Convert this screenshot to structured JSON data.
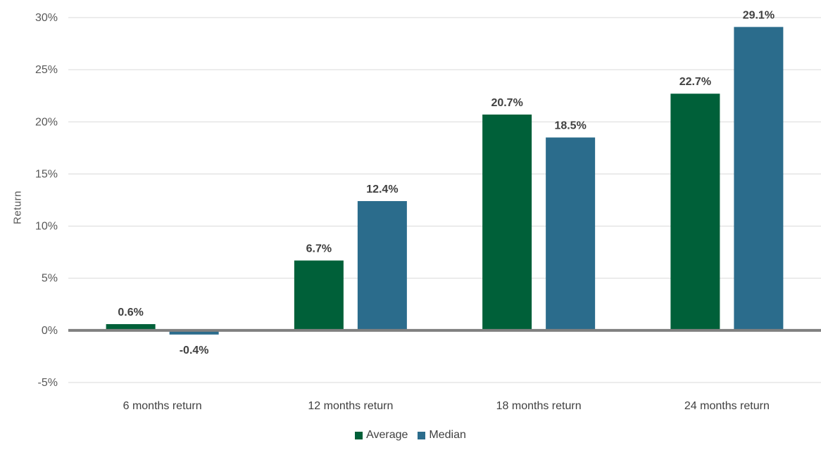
{
  "chart_data": {
    "type": "bar",
    "categories": [
      "6 months return",
      "12 months return",
      "18 months return",
      "24 months return"
    ],
    "series": [
      {
        "name": "Average",
        "values": [
          0.6,
          6.7,
          20.7,
          22.7
        ],
        "labels": [
          "0.6%",
          "6.7%",
          "20.7%",
          "22.7%"
        ],
        "color": "#006039"
      },
      {
        "name": "Median",
        "values": [
          -0.4,
          12.4,
          18.5,
          29.1
        ],
        "labels": [
          "-0.4%",
          "12.4%",
          "18.5%",
          "29.1%"
        ],
        "color": "#2b6c8c"
      }
    ],
    "ylabel": "Return",
    "xlabel": "",
    "ylim": [
      -5,
      30
    ],
    "yticks": [
      30,
      25,
      20,
      15,
      10,
      5,
      0,
      -5
    ],
    "ytick_labels": [
      "30%",
      "25%",
      "20%",
      "15%",
      "10%",
      "5%",
      "0%",
      "-5%"
    ],
    "grid": true,
    "legend_position": "bottom"
  }
}
